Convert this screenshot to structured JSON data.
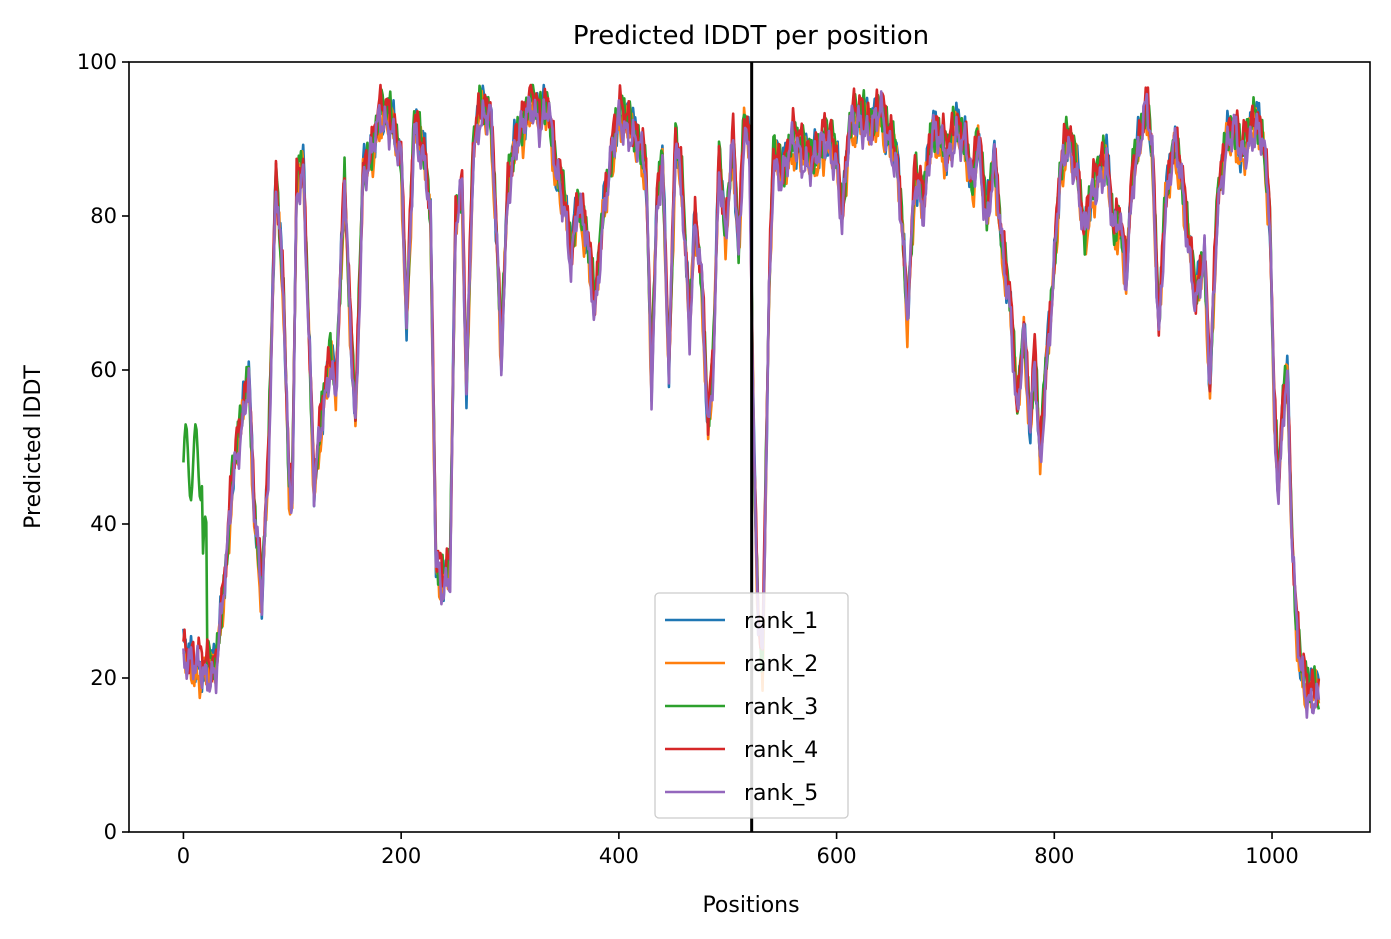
{
  "chart_data": {
    "type": "line",
    "title": "Predicted lDDT per position",
    "xlabel": "Positions",
    "ylabel": "Predicted lDDT",
    "xlim": [
      -50,
      1090
    ],
    "ylim": [
      0,
      100
    ],
    "xticks": [
      0,
      200,
      400,
      600,
      800,
      1000
    ],
    "yticks": [
      0,
      20,
      40,
      60,
      80,
      100
    ],
    "grid": false,
    "legend_position": "lower center",
    "vertical_line": {
      "x": 522,
      "color": "#000000"
    },
    "series_length": 1044,
    "series": [
      {
        "name": "rank_1",
        "color": "#1f77b4",
        "offset": 0.0
      },
      {
        "name": "rank_2",
        "color": "#ff7f0e",
        "offset": -1.0
      },
      {
        "name": "rank_3",
        "color": "#2ca02c",
        "offset": 0.5
      },
      {
        "name": "rank_4",
        "color": "#d62728",
        "offset": 0.8
      },
      {
        "name": "rank_5",
        "color": "#9467bd",
        "offset": -0.8
      }
    ],
    "profile_points": [
      [
        0,
        24
      ],
      [
        10,
        22
      ],
      [
        20,
        21
      ],
      [
        30,
        22
      ],
      [
        40,
        36
      ],
      [
        45,
        46
      ],
      [
        55,
        55
      ],
      [
        60,
        60
      ],
      [
        65,
        42
      ],
      [
        72,
        31
      ],
      [
        78,
        48
      ],
      [
        85,
        86
      ],
      [
        92,
        70
      ],
      [
        97,
        45
      ],
      [
        100,
        44
      ],
      [
        104,
        84
      ],
      [
        110,
        87
      ],
      [
        116,
        62
      ],
      [
        120,
        45
      ],
      [
        128,
        55
      ],
      [
        135,
        62
      ],
      [
        140,
        58
      ],
      [
        148,
        85
      ],
      [
        152,
        70
      ],
      [
        158,
        53
      ],
      [
        165,
        86
      ],
      [
        172,
        88
      ],
      [
        180,
        93
      ],
      [
        190,
        93
      ],
      [
        200,
        88
      ],
      [
        205,
        66
      ],
      [
        212,
        92
      ],
      [
        222,
        88
      ],
      [
        227,
        80
      ],
      [
        232,
        35
      ],
      [
        238,
        32
      ],
      [
        245,
        35
      ],
      [
        250,
        80
      ],
      [
        256,
        84
      ],
      [
        260,
        57
      ],
      [
        266,
        88
      ],
      [
        272,
        94
      ],
      [
        282,
        94
      ],
      [
        287,
        80
      ],
      [
        292,
        62
      ],
      [
        298,
        84
      ],
      [
        305,
        90
      ],
      [
        312,
        92
      ],
      [
        320,
        95
      ],
      [
        328,
        93
      ],
      [
        335,
        95
      ],
      [
        342,
        86
      ],
      [
        350,
        82
      ],
      [
        356,
        75
      ],
      [
        362,
        82
      ],
      [
        370,
        78
      ],
      [
        378,
        68
      ],
      [
        385,
        80
      ],
      [
        393,
        88
      ],
      [
        400,
        93
      ],
      [
        410,
        92
      ],
      [
        418,
        90
      ],
      [
        425,
        86
      ],
      [
        430,
        58
      ],
      [
        435,
        82
      ],
      [
        440,
        88
      ],
      [
        446,
        60
      ],
      [
        452,
        90
      ],
      [
        458,
        84
      ],
      [
        465,
        66
      ],
      [
        470,
        80
      ],
      [
        476,
        72
      ],
      [
        482,
        52
      ],
      [
        487,
        62
      ],
      [
        492,
        88
      ],
      [
        498,
        78
      ],
      [
        505,
        90
      ],
      [
        510,
        75
      ],
      [
        515,
        92
      ],
      [
        520,
        90
      ],
      [
        524,
        50
      ],
      [
        528,
        28
      ],
      [
        532,
        22
      ],
      [
        538,
        70
      ],
      [
        542,
        88
      ],
      [
        550,
        86
      ],
      [
        560,
        90
      ],
      [
        570,
        88
      ],
      [
        580,
        88
      ],
      [
        590,
        90
      ],
      [
        600,
        88
      ],
      [
        605,
        80
      ],
      [
        612,
        92
      ],
      [
        622,
        93
      ],
      [
        630,
        92
      ],
      [
        640,
        94
      ],
      [
        648,
        90
      ],
      [
        655,
        88
      ],
      [
        660,
        80
      ],
      [
        665,
        67
      ],
      [
        672,
        85
      ],
      [
        680,
        82
      ],
      [
        688,
        92
      ],
      [
        695,
        90
      ],
      [
        702,
        88
      ],
      [
        710,
        92
      ],
      [
        718,
        90
      ],
      [
        725,
        84
      ],
      [
        730,
        90
      ],
      [
        738,
        80
      ],
      [
        745,
        88
      ],
      [
        752,
        76
      ],
      [
        760,
        68
      ],
      [
        766,
        55
      ],
      [
        772,
        66
      ],
      [
        778,
        52
      ],
      [
        782,
        62
      ],
      [
        787,
        48
      ],
      [
        792,
        60
      ],
      [
        798,
        70
      ],
      [
        805,
        85
      ],
      [
        812,
        90
      ],
      [
        820,
        87
      ],
      [
        828,
        78
      ],
      [
        833,
        82
      ],
      [
        840,
        85
      ],
      [
        848,
        88
      ],
      [
        855,
        78
      ],
      [
        860,
        80
      ],
      [
        866,
        72
      ],
      [
        872,
        86
      ],
      [
        878,
        90
      ],
      [
        885,
        95
      ],
      [
        890,
        88
      ],
      [
        896,
        65
      ],
      [
        902,
        82
      ],
      [
        910,
        90
      ],
      [
        916,
        86
      ],
      [
        922,
        78
      ],
      [
        930,
        70
      ],
      [
        938,
        75
      ],
      [
        943,
        58
      ],
      [
        950,
        82
      ],
      [
        958,
        90
      ],
      [
        965,
        92
      ],
      [
        972,
        88
      ],
      [
        978,
        90
      ],
      [
        985,
        93
      ],
      [
        992,
        90
      ],
      [
        998,
        80
      ],
      [
        1002,
        55
      ],
      [
        1006,
        44
      ],
      [
        1010,
        56
      ],
      [
        1014,
        60
      ],
      [
        1018,
        40
      ],
      [
        1022,
        28
      ],
      [
        1026,
        22
      ],
      [
        1030,
        19
      ],
      [
        1035,
        18
      ],
      [
        1040,
        19
      ],
      [
        1043,
        18
      ]
    ]
  }
}
